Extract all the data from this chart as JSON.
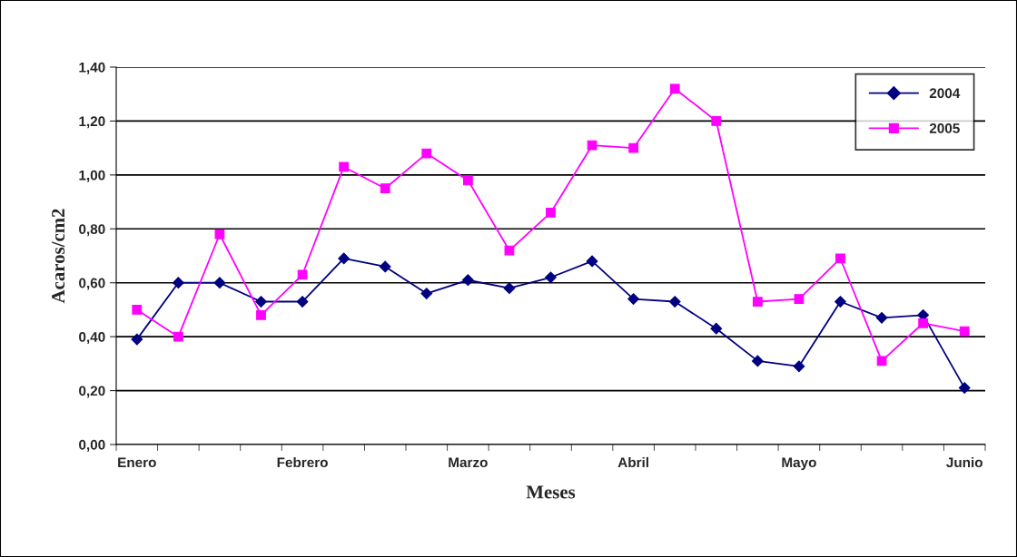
{
  "chart_data": {
    "type": "line",
    "xlabel": "Meses",
    "ylabel": "Acaros/cm2",
    "categories": [
      "Enero",
      null,
      null,
      null,
      "Febrero",
      null,
      null,
      null,
      "Marzo",
      null,
      null,
      null,
      "Abril",
      null,
      null,
      null,
      "Mayo",
      null,
      null,
      null,
      "Junio"
    ],
    "series": [
      {
        "name": "2004",
        "color": "#000080",
        "marker": "diamond",
        "values": [
          0.39,
          0.6,
          0.6,
          0.53,
          0.53,
          0.69,
          0.66,
          0.56,
          0.61,
          0.58,
          0.62,
          0.68,
          0.54,
          0.53,
          0.43,
          0.31,
          0.29,
          0.53,
          0.47,
          0.48,
          0.21
        ]
      },
      {
        "name": "2005",
        "color": "#ff00ff",
        "marker": "square",
        "values": [
          0.5,
          0.4,
          0.78,
          0.48,
          0.63,
          1.03,
          0.95,
          1.08,
          0.98,
          0.72,
          0.86,
          1.11,
          1.1,
          1.32,
          1.2,
          0.53,
          0.54,
          0.69,
          0.31,
          0.45,
          0.42
        ]
      }
    ],
    "ylim": [
      0,
      1.4
    ],
    "yticks": [
      {
        "value": 0,
        "label": "0,00"
      },
      {
        "value": 0.2,
        "label": "0,20"
      },
      {
        "value": 0.4,
        "label": "0,40"
      },
      {
        "value": 0.6,
        "label": "0,60"
      },
      {
        "value": 0.8,
        "label": "0,80"
      },
      {
        "value": 1.0,
        "label": "1,00"
      },
      {
        "value": 1.2,
        "label": "1,20"
      },
      {
        "value": 1.4,
        "label": "1,40"
      }
    ],
    "grid": "y",
    "legend": "top right",
    "line_style": "solid"
  }
}
